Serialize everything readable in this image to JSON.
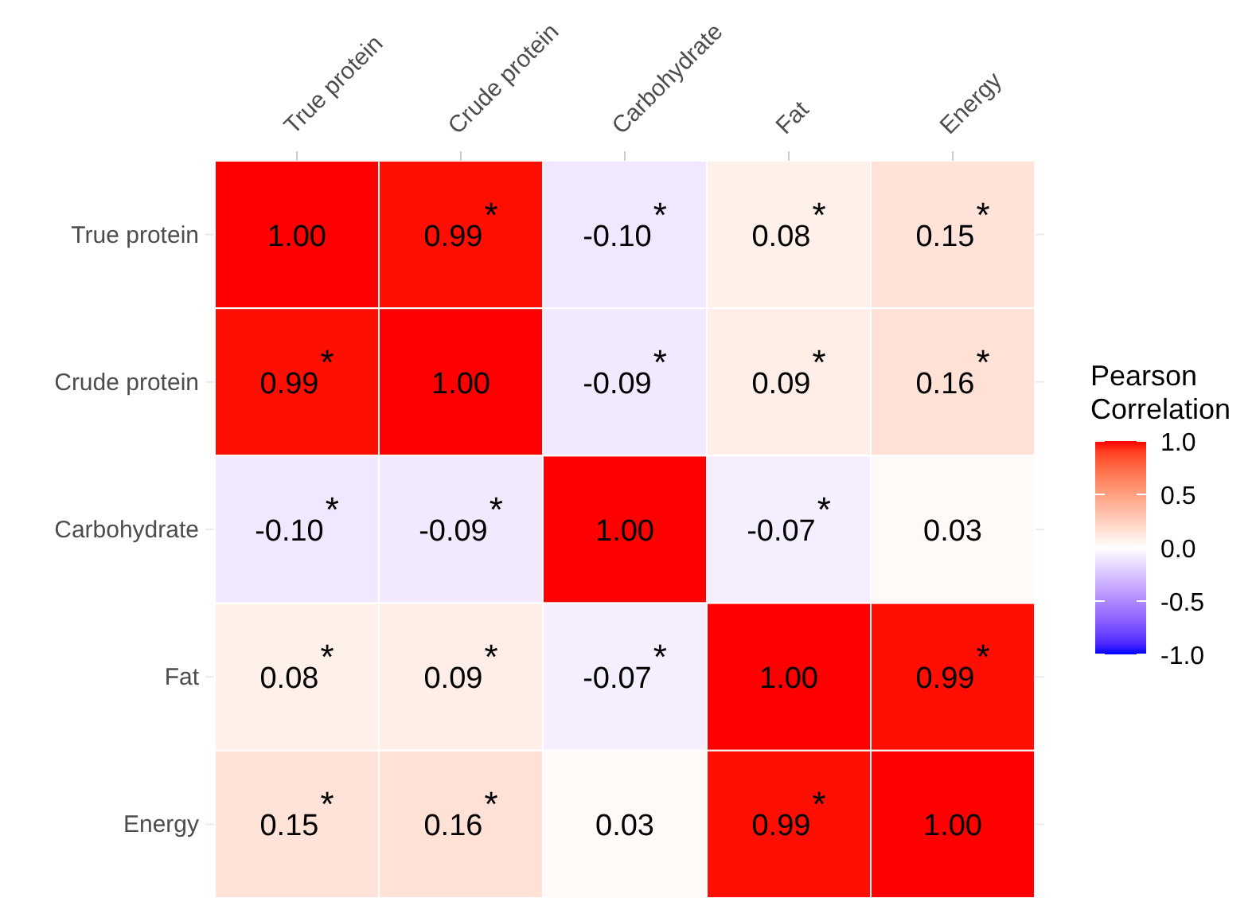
{
  "chart_data": {
    "type": "heatmap",
    "categories": [
      "True protein",
      "Crude protein",
      "Carbohydrate",
      "Fat",
      "Energy"
    ],
    "y_categories": [
      "True protein",
      "Crude protein",
      "Carbohydrate",
      "Fat",
      "Energy"
    ],
    "cells": [
      [
        1.0,
        0.99,
        -0.1,
        0.08,
        0.15
      ],
      [
        0.99,
        1.0,
        -0.09,
        0.09,
        0.16
      ],
      [
        -0.1,
        -0.09,
        1.0,
        -0.07,
        0.03
      ],
      [
        0.08,
        0.09,
        -0.07,
        1.0,
        0.99
      ],
      [
        0.15,
        0.16,
        0.03,
        0.99,
        1.0
      ]
    ],
    "cell_labels": [
      [
        "1.00",
        "0.99$^{*}$",
        "-0.10$^{*}$",
        "0.08$^{*}$",
        "0.15$^{*}$"
      ],
      [
        "0.99$^{*}$",
        "1.00",
        "-0.09$^{*}$",
        "0.09$^{*}$",
        "0.16$^{*}$"
      ],
      [
        "-0.10$^{*}$",
        "-0.09$^{*}$",
        "1.00",
        "-0.07$^{*}$",
        "0.03"
      ],
      [
        "0.08$^{*}$",
        "0.09$^{*}$",
        "-0.07$^{*}$",
        "1.00",
        "0.99$^{*}$"
      ],
      [
        "0.15$^{*}$",
        "0.16$^{*}$",
        "0.03",
        "0.99$^{*}$",
        "1.00"
      ]
    ],
    "clabel": "Pearson Correlation",
    "clim": [
      -1,
      1
    ],
    "cticks": [
      {
        "value": 1,
        "label": "1.0"
      },
      {
        "value": 0.5,
        "label": "0.5"
      },
      {
        "value": 0,
        "label": "0.0"
      },
      {
        "value": -0.5,
        "label": "-0.5"
      },
      {
        "value": -1,
        "label": "-1.0"
      }
    ],
    "grid": true
  }
}
